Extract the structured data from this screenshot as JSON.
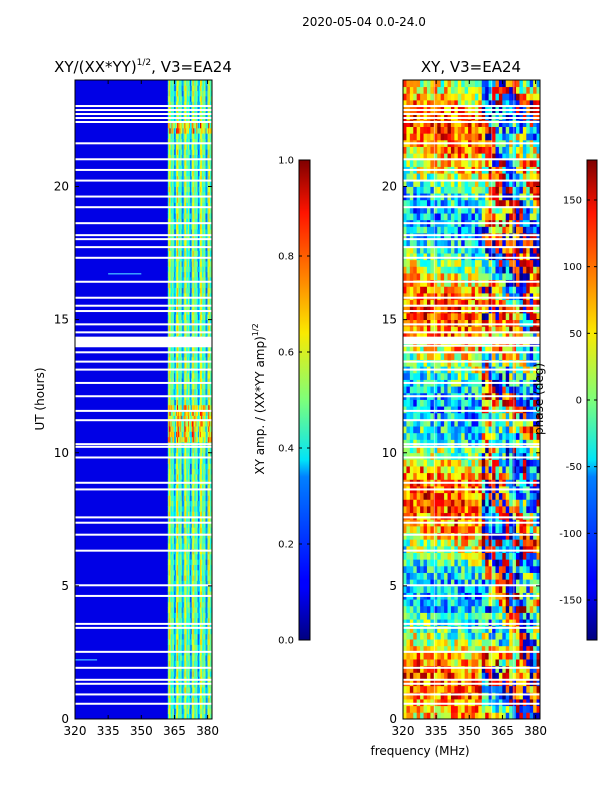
{
  "suptitle": "2020-05-04 0.0-24.0",
  "chart_data": [
    {
      "type": "heatmap",
      "title_main": "XY/(XX*YY)",
      "title_exp": "1/2",
      "title_suffix": ", V3=EA24",
      "xlabel": "",
      "ylabel": "UT (hours)",
      "xlim": [
        320,
        382
      ],
      "ylim": [
        0,
        24
      ],
      "xticks": [
        320,
        335,
        350,
        365,
        380
      ],
      "yticks": [
        0,
        5,
        10,
        15,
        20
      ],
      "colorbar": {
        "label_main": "XY amp. / (XX*YY amp)",
        "label_exp": "1/2",
        "range": [
          0.0,
          1.0
        ],
        "ticks": [
          "0.0",
          "0.2",
          "0.4",
          "0.6",
          "0.8",
          "1.0"
        ],
        "colormap": "jet"
      },
      "notes": "Mostly low amplitude (~0.1) below ~362 MHz; bright channel stripes 362-382 MHz with values 0.3-0.7, peaks ~0.9 near 10.5-11.5 h and ~22.1 h. Horizontal white gaps are flagged times."
    },
    {
      "type": "heatmap",
      "title": "XY, V3=EA24",
      "xlabel": "frequency (MHz)",
      "ylabel": "",
      "xlim": [
        320,
        382
      ],
      "ylim": [
        0,
        24
      ],
      "xticks": [
        320,
        335,
        350,
        365,
        380
      ],
      "yticks": [
        0,
        5,
        10,
        15,
        20
      ],
      "colorbar": {
        "label": "phase (deg)",
        "range": [
          -180,
          180
        ],
        "ticks": [
          "-150",
          "-100",
          "-50",
          "0",
          "50",
          "100",
          "150"
        ],
        "colormap": "jet"
      },
      "notes": "Phase wraps across full +/-180 deg range; structured fringe-like pattern, noisier at high frequency."
    }
  ]
}
